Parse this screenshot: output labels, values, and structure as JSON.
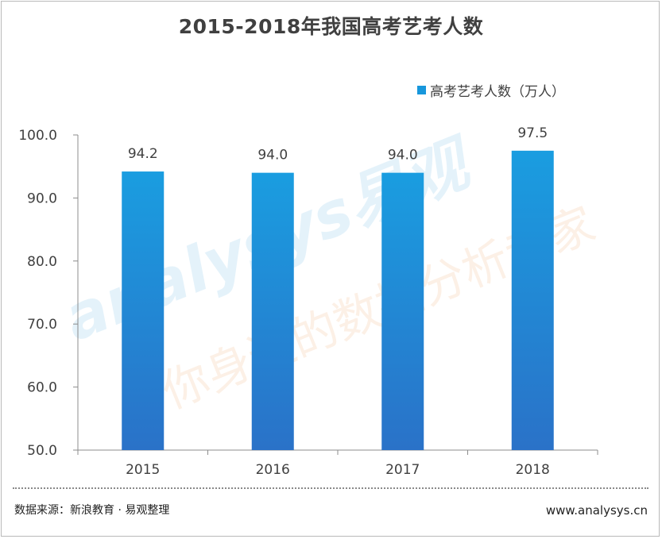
{
  "title": "2015-2018年我国高考艺考人数",
  "legend": {
    "label": "高考艺考人数（万人）",
    "color": "#1797dc"
  },
  "footer": {
    "source": "数据来源：新浪教育 · 易观整理",
    "website": "www.analysys.cn"
  },
  "watermark": {
    "brand": "analysys易观",
    "slogan": "你身边的数据分析专家"
  },
  "chart_data": {
    "type": "bar",
    "categories": [
      "2015",
      "2016",
      "2017",
      "2018"
    ],
    "series": [
      {
        "name": "高考艺考人数（万人）",
        "values": [
          94.2,
          94.0,
          94.0,
          97.5
        ]
      }
    ],
    "data_labels": [
      "94.2",
      "94.0",
      "94.0",
      "97.5"
    ],
    "yticks": [
      "50.0",
      "60.0",
      "70.0",
      "80.0",
      "90.0",
      "100.0"
    ],
    "ylim": [
      50,
      100
    ],
    "grid": false,
    "legend_position": "top-right",
    "colors": {
      "bar_top": "#1a9de0",
      "bar_bottom": "#2a72c8"
    }
  }
}
